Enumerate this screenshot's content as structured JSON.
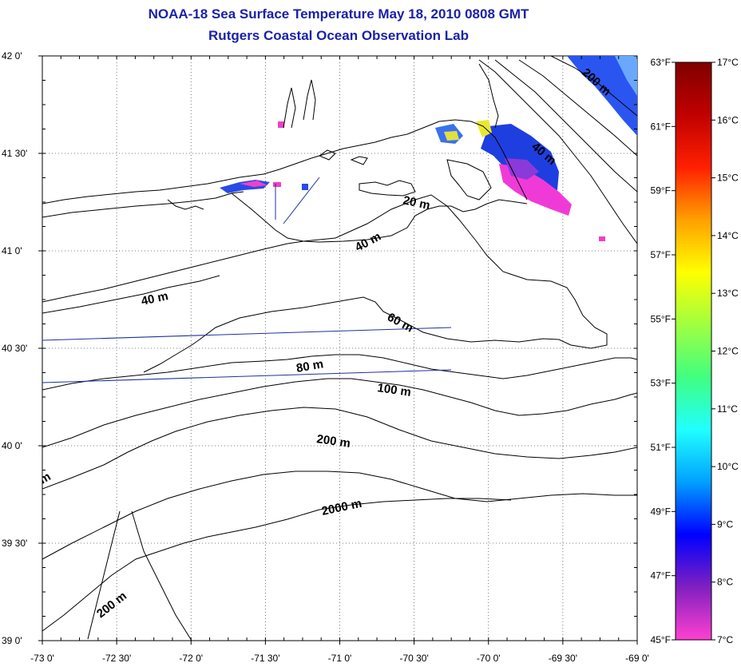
{
  "title": "NOAA-18 Sea Surface Temperature May 18, 2010 0808 GMT",
  "subtitle": "Rutgers Coastal Ocean Observation Lab",
  "map": {
    "lon_ticks": [
      "-73 0'",
      "-72 30'",
      "-72 0'",
      "-71 30'",
      "-71 0'",
      "-70 30'",
      "-70 0'",
      "-69 30'",
      "-69 0'"
    ],
    "lat_ticks": [
      "42 0'",
      "41 30'",
      "41 0'",
      "40 30'",
      "40 0'",
      "39 30'",
      "39 0'"
    ],
    "contour_labels": [
      "200 m",
      "40 m",
      "20 m",
      "40 m",
      "40 m",
      "60 m",
      "80 m",
      "100 m",
      "200 m",
      "2000 m",
      "200 m",
      "m"
    ]
  },
  "colorbar": {
    "celsius": [
      "17°C",
      "16°C",
      "15°C",
      "14°C",
      "13°C",
      "12°C",
      "11°C",
      "10°C",
      "9°C",
      "8°C",
      "7°C"
    ],
    "fahrenheit": [
      "63°F",
      "61°F",
      "59°F",
      "57°F",
      "55°F",
      "53°F",
      "51°F",
      "49°F",
      "47°F",
      "45°F"
    ],
    "stops": [
      "#ff40d0",
      "#8020c0",
      "#0000ff",
      "#00a0ff",
      "#20ffff",
      "#40ff80",
      "#a0ff40",
      "#ffff00",
      "#ffa000",
      "#ff2000",
      "#c00000",
      "#800000"
    ]
  }
}
